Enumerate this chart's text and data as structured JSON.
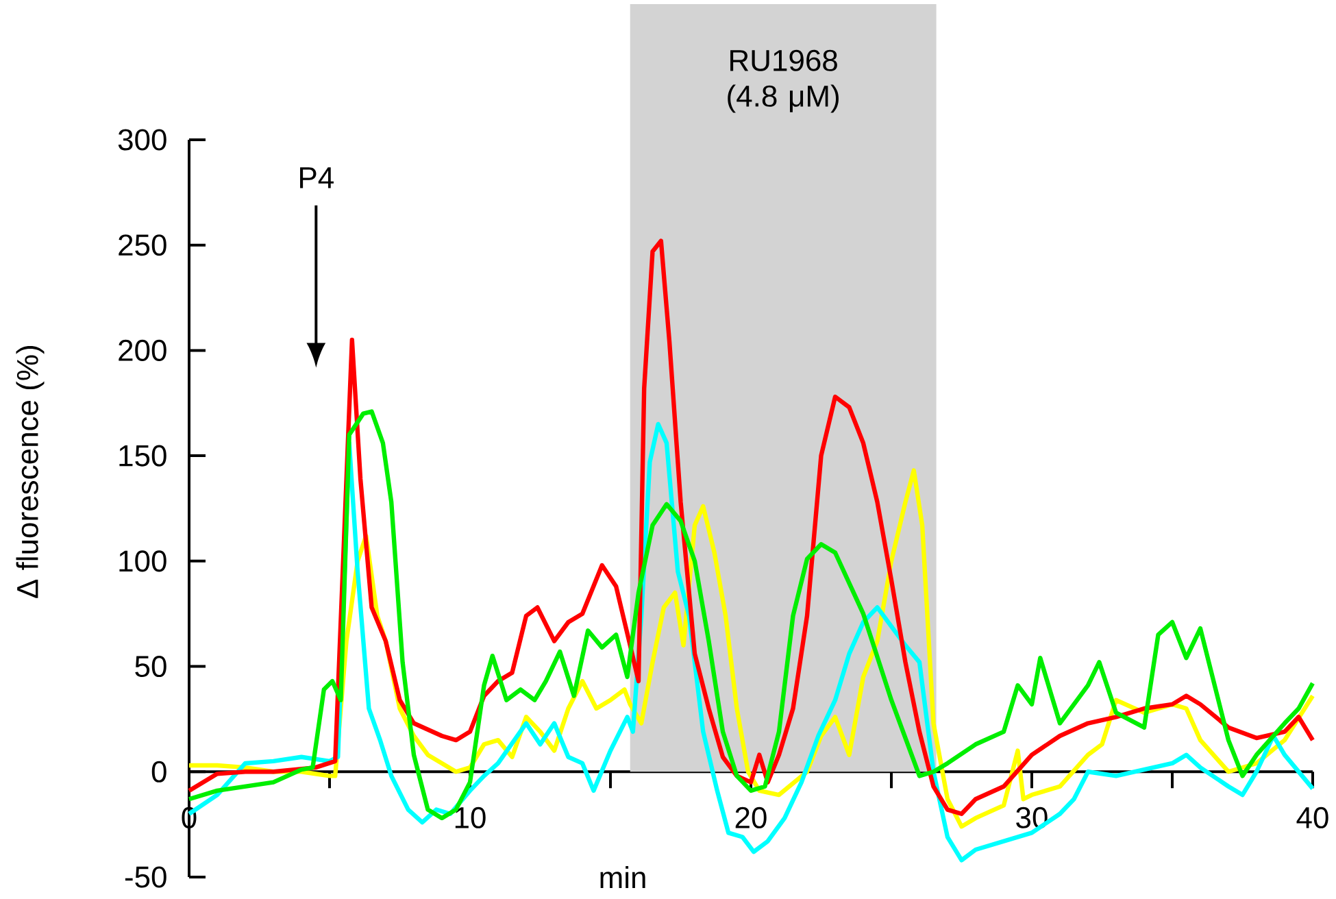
{
  "chart_data": {
    "type": "line",
    "xlabel": "min",
    "ylabel": "Δ fluorescence (%)",
    "xlim": [
      0,
      40
    ],
    "ylim": [
      -50,
      300
    ],
    "xticks": [
      0,
      {
        "value": 5,
        "label": null
      },
      10,
      {
        "value": 15,
        "label": null
      },
      20,
      {
        "value": 25,
        "label": null
      },
      30,
      {
        "value": 35,
        "label": null
      },
      40
    ],
    "yticks": [
      -50,
      0,
      50,
      100,
      150,
      200,
      250,
      300
    ],
    "bands": [
      {
        "axis": "x",
        "from": 15.7,
        "to": 26.6,
        "label": "RU1968 (4.8 μM)",
        "color": "#d3d3d3"
      }
    ],
    "annotations": [
      "P4"
    ],
    "series": [
      {
        "color": "#ffff00",
        "x": [
          0,
          1,
          2,
          3,
          4,
          5,
          5.2,
          5.6,
          6,
          6.3,
          6.7,
          7,
          7.5,
          8,
          8.5,
          9,
          9.5,
          10,
          10.5,
          11,
          11.5,
          12,
          12.5,
          13,
          13.5,
          14,
          14.5,
          15,
          15.5,
          15.7,
          16.1,
          16.5,
          16.9,
          17.3,
          17.6,
          18,
          18.3,
          18.7,
          19.1,
          19.5,
          19.9,
          20.3,
          21,
          22,
          22.5,
          23,
          23.5,
          24,
          24.5,
          25,
          25.5,
          25.8,
          26.1,
          26.5,
          27,
          27.5,
          28,
          29,
          29.5,
          29.7,
          30,
          31,
          32,
          32.5,
          33,
          34,
          35,
          35.5,
          36,
          37,
          38,
          39,
          40
        ],
        "values": [
          3,
          3,
          2,
          0,
          0,
          -2,
          -2,
          62,
          100,
          112,
          74,
          62,
          30,
          17,
          8,
          4,
          0,
          2,
          13,
          15,
          7,
          26,
          19,
          10,
          30,
          43,
          30,
          34,
          39,
          32,
          23,
          52,
          78,
          85,
          60,
          117,
          126,
          104,
          74,
          30,
          0,
          -9,
          -11,
          0,
          17,
          26,
          8,
          45,
          62,
          100,
          128,
          143,
          117,
          23,
          -13,
          -26,
          -22,
          -16,
          10,
          -13,
          -11,
          -7,
          8,
          13,
          34,
          28,
          32,
          30,
          15,
          0,
          4,
          15,
          36
        ]
      },
      {
        "color": "#00ffff",
        "x": [
          0,
          1,
          2,
          3,
          4,
          5,
          5.3,
          5.7,
          6,
          6.4,
          6.8,
          7.2,
          7.8,
          8.3,
          8.8,
          9.3,
          10,
          10.5,
          11,
          12,
          12.5,
          13,
          13.5,
          14,
          14.4,
          15,
          15.6,
          15.8,
          16.1,
          16.4,
          16.7,
          17,
          17.4,
          17.8,
          18.3,
          18.8,
          19.2,
          19.7,
          20.1,
          20.6,
          21.2,
          21.8,
          22.4,
          23,
          23.5,
          24,
          24.5,
          25,
          25.5,
          26,
          26.5,
          27,
          27.5,
          28,
          29,
          30,
          31,
          31.5,
          32,
          33,
          34,
          35,
          35.5,
          36,
          37,
          37.5,
          38,
          38.6,
          39,
          40
        ],
        "values": [
          -20,
          -11,
          4,
          5,
          7,
          5,
          7,
          156,
          95,
          30,
          15,
          -2,
          -18,
          -24,
          -18,
          -20,
          -9,
          -2,
          4,
          23,
          13,
          23,
          7,
          4,
          -9,
          10,
          26,
          19,
          74,
          147,
          165,
          156,
          95,
          74,
          19,
          -9,
          -29,
          -31,
          -38,
          -33,
          -22,
          -5,
          17,
          34,
          56,
          71,
          78,
          69,
          60,
          52,
          0,
          -31,
          -42,
          -37,
          -33,
          -29,
          -20,
          -13,
          0,
          -2,
          1,
          4,
          8,
          2,
          -7,
          -11,
          0,
          17,
          8,
          -8
        ]
      },
      {
        "color": "#ff0000",
        "x": [
          0,
          1,
          2,
          3,
          4.5,
          5.2,
          5.8,
          6.1,
          6.5,
          7,
          7.5,
          8,
          9,
          9.5,
          10,
          10.5,
          11,
          11.5,
          12,
          12.4,
          13,
          13.5,
          14,
          14.7,
          15.2,
          15.7,
          16,
          16.2,
          16.5,
          16.8,
          17.1,
          17.5,
          18,
          18.5,
          19,
          19.5,
          20,
          20.3,
          20.6,
          21,
          21.5,
          22,
          22.5,
          23,
          23.5,
          24,
          24.5,
          25,
          25.5,
          26,
          26.5,
          27,
          27.5,
          28,
          29,
          30,
          31,
          32,
          33,
          34,
          35,
          35.5,
          36,
          37,
          38,
          39,
          39.5,
          40
        ],
        "values": [
          -9,
          -1,
          0,
          0,
          2,
          5,
          205,
          139,
          78,
          62,
          34,
          23,
          17,
          15,
          19,
          36,
          43,
          47,
          74,
          78,
          62,
          71,
          75,
          98,
          88,
          60,
          43,
          182,
          247,
          252,
          204,
          128,
          56,
          30,
          7,
          -2,
          -5,
          8,
          -5,
          8,
          30,
          74,
          150,
          178,
          173,
          156,
          128,
          91,
          52,
          19,
          -7,
          -18,
          -20,
          -13,
          -7,
          8,
          17,
          23,
          26,
          30,
          32,
          36,
          32,
          21,
          16,
          19,
          26,
          15
        ]
      },
      {
        "color": "#00ee00",
        "x": [
          0,
          1,
          2,
          3,
          4,
          4.4,
          4.8,
          5.1,
          5.4,
          5.7,
          6.2,
          6.5,
          6.9,
          7.2,
          7.6,
          8,
          8.5,
          9,
          9.5,
          10,
          10.5,
          10.8,
          11.3,
          11.8,
          12.3,
          12.7,
          13.2,
          13.7,
          14.2,
          14.7,
          15.2,
          15.6,
          16,
          16.5,
          17,
          17.5,
          18,
          18.5,
          19,
          19.5,
          20,
          20.5,
          21,
          21.5,
          22,
          22.5,
          23,
          24,
          25,
          26,
          26.5,
          27,
          28,
          29,
          29.5,
          30,
          30.3,
          31,
          32,
          32.4,
          33,
          34,
          34.5,
          35,
          35.5,
          36,
          37,
          37.5,
          38,
          39,
          39.5,
          40
        ],
        "values": [
          -13,
          -9,
          -7,
          -5,
          1,
          2,
          39,
          43,
          34,
          160,
          170,
          171,
          156,
          128,
          52,
          8,
          -18,
          -22,
          -18,
          -5,
          41,
          55,
          34,
          39,
          34,
          43,
          57,
          36,
          67,
          59,
          65,
          45,
          85,
          117,
          127,
          119,
          100,
          62,
          19,
          -2,
          -9,
          -7,
          19,
          74,
          101,
          108,
          104,
          75,
          34,
          -2,
          0,
          4,
          13,
          19,
          41,
          32,
          54,
          23,
          41,
          52,
          28,
          21,
          65,
          71,
          54,
          68,
          15,
          -2,
          8,
          23,
          30,
          42
        ]
      }
    ]
  }
}
